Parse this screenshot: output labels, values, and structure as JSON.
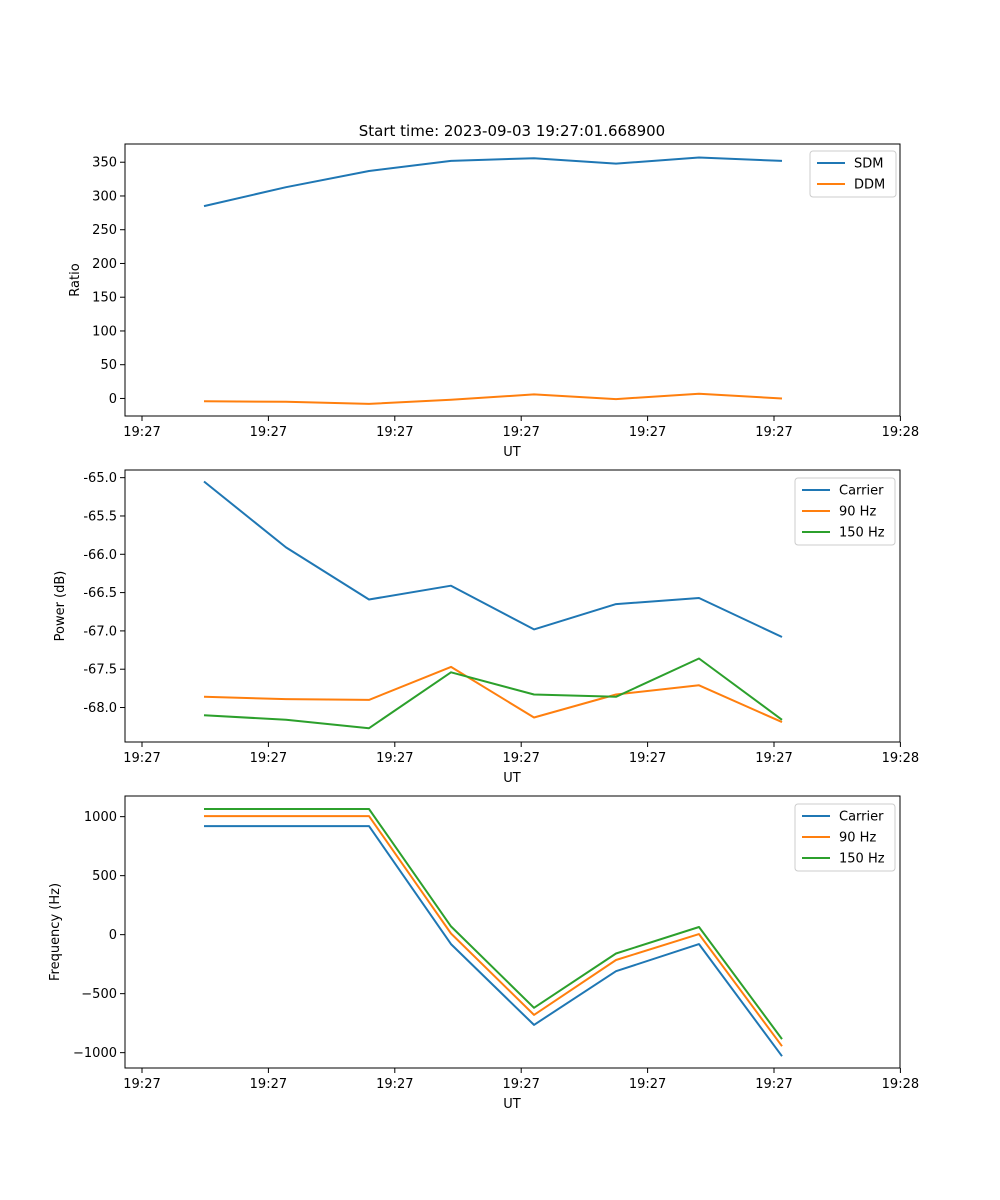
{
  "chart_data": [
    {
      "type": "line",
      "title": "Start time: 2023-09-03 19:27:01.668900",
      "xlabel": "UT",
      "ylabel": "Ratio",
      "x_tick_labels": [
        "19:27",
        "19:27",
        "19:27",
        "19:27",
        "19:27",
        "19:27",
        "19:28"
      ],
      "y_ticks": [
        0,
        50,
        100,
        150,
        200,
        250,
        300,
        350
      ],
      "ylim": [
        -26,
        377
      ],
      "legend_position": "top-right",
      "series": [
        {
          "name": "SDM",
          "color": "#1f77b4",
          "values": [
            285,
            313,
            337,
            352,
            356,
            348,
            357,
            352
          ]
        },
        {
          "name": "DDM",
          "color": "#ff7f0e",
          "values": [
            -4,
            -5,
            -8,
            -2,
            6,
            -1,
            7,
            0
          ]
        }
      ]
    },
    {
      "type": "line",
      "title": "",
      "xlabel": "UT",
      "ylabel": "Power (dB)",
      "x_tick_labels": [
        "19:27",
        "19:27",
        "19:27",
        "19:27",
        "19:27",
        "19:27",
        "19:28"
      ],
      "y_ticks": [
        -65.0,
        -65.5,
        -66.0,
        -66.5,
        -67.0,
        -67.5,
        -68.0
      ],
      "y_tick_labels": [
        "-65.0",
        "-65.5",
        "-66.0",
        "-66.5",
        "-67.0",
        "-67.5",
        "-68.0"
      ],
      "ylim": [
        -68.45,
        -64.9
      ],
      "legend_position": "top-right",
      "series": [
        {
          "name": "Carrier",
          "color": "#1f77b4",
          "values": [
            -65.05,
            -65.91,
            -66.59,
            -66.41,
            -66.98,
            -66.65,
            -66.57,
            -67.08
          ]
        },
        {
          "name": "90 Hz",
          "color": "#ff7f0e",
          "values": [
            -67.86,
            -67.89,
            -67.9,
            -67.47,
            -68.13,
            -67.83,
            -67.71,
            -68.19
          ]
        },
        {
          "name": "150 Hz",
          "color": "#2ca02c",
          "values": [
            -68.1,
            -68.16,
            -68.27,
            -67.54,
            -67.83,
            -67.86,
            -67.36,
            -68.16
          ]
        }
      ]
    },
    {
      "type": "line",
      "title": "",
      "xlabel": "UT",
      "ylabel": "Frequency (Hz)",
      "x_tick_labels": [
        "19:27",
        "19:27",
        "19:27",
        "19:27",
        "19:27",
        "19:27",
        "19:28"
      ],
      "y_ticks": [
        1000,
        500,
        0,
        -500,
        -1000
      ],
      "y_tick_labels": [
        "1000",
        "500",
        "0",
        "−500",
        "−1000"
      ],
      "ylim": [
        -1130,
        1175
      ],
      "legend_position": "top-right",
      "series": [
        {
          "name": "Carrier",
          "color": "#1f77b4",
          "values": [
            920,
            920,
            920,
            -80,
            -765,
            -310,
            -80,
            -1030
          ]
        },
        {
          "name": "90 Hz",
          "color": "#ff7f0e",
          "values": [
            1005,
            1005,
            1005,
            10,
            -680,
            -215,
            5,
            -945
          ]
        },
        {
          "name": "150 Hz",
          "color": "#2ca02c",
          "values": [
            1065,
            1065,
            1065,
            70,
            -620,
            -160,
            65,
            -885
          ]
        }
      ]
    }
  ]
}
